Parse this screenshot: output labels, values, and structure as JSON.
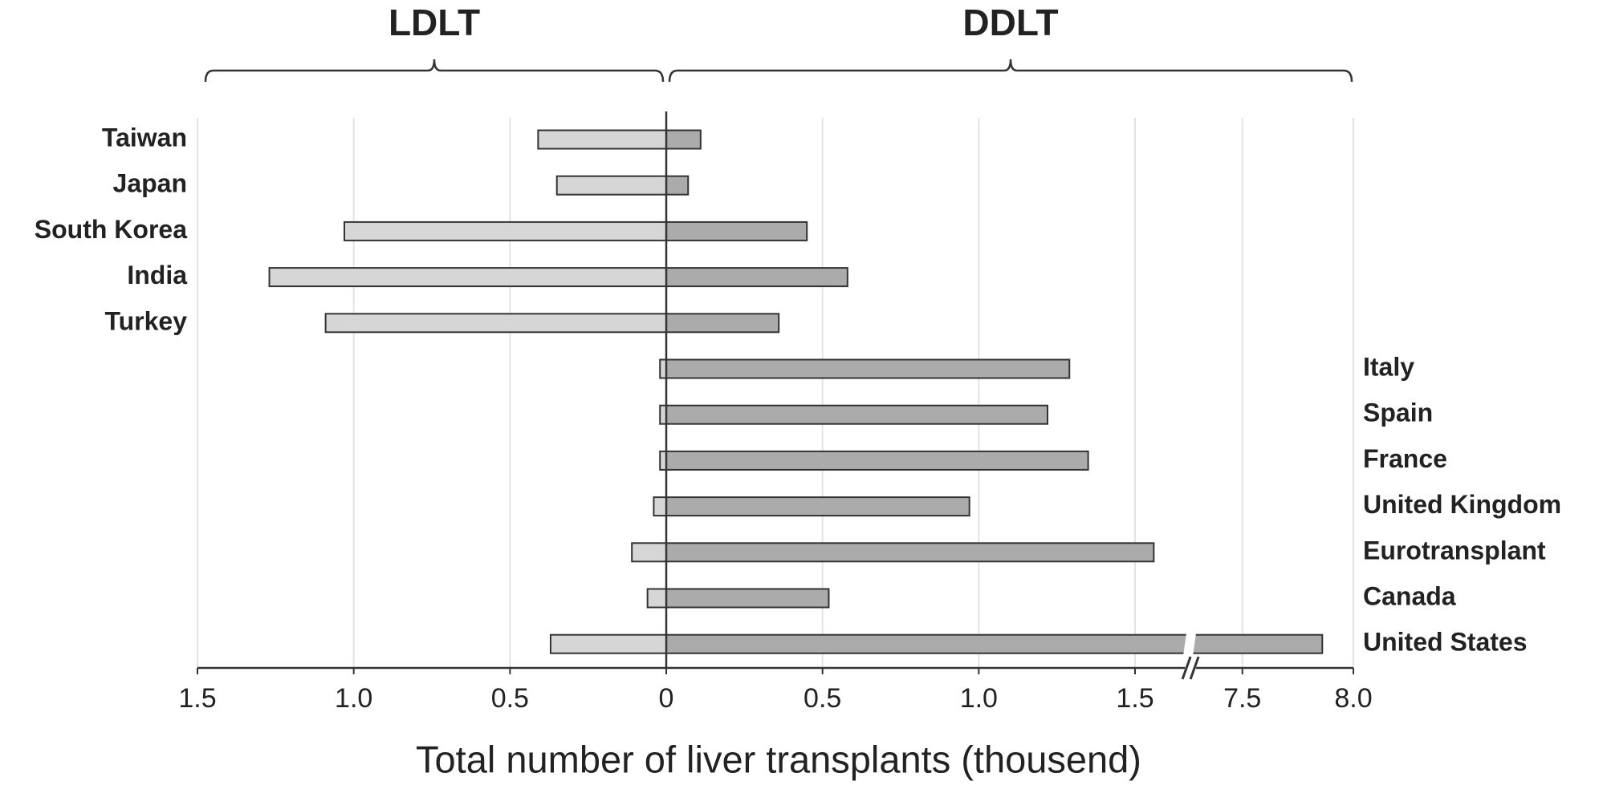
{
  "chart_data": {
    "type": "diverging-bar",
    "x_label": "Total number of liver transplants (thousend)",
    "categories": [
      "Taiwan",
      "Japan",
      "South Korea",
      "India",
      "Turkey",
      "Italy",
      "Spain",
      "France",
      "United Kingdom",
      "Eurotransplant",
      "Canada",
      "United States"
    ],
    "series": [
      {
        "name": "LDLT",
        "color": "#d6d6d6",
        "side": "left",
        "values": [
          0.41,
          0.35,
          1.03,
          1.27,
          1.09,
          0.02,
          0.02,
          0.02,
          0.04,
          0.11,
          0.06,
          0.37
        ]
      },
      {
        "name": "DDLT",
        "color": "#ababab",
        "side": "right",
        "values": [
          0.11,
          0.07,
          0.45,
          0.58,
          0.36,
          1.29,
          1.22,
          1.35,
          0.97,
          1.56,
          0.52,
          7.86
        ]
      }
    ],
    "left_axis": {
      "xlim": [
        0,
        1.5
      ],
      "xticks": [
        1.5,
        {
          "value": 1,
          "label": "1.0"
        },
        0.5
      ]
    },
    "right_axis": {
      "xlim": [
        0,
        {
          "value": 8,
          "label": "8.0"
        }
      ],
      "xbreak": [
        1.68,
        7.27
      ],
      "xticks": [
        0,
        0.5,
        {
          "value": 1,
          "label": "1.0"
        },
        1.5,
        7.5,
        {
          "value": 8,
          "label": "8.0"
        }
      ]
    },
    "grid": true
  }
}
